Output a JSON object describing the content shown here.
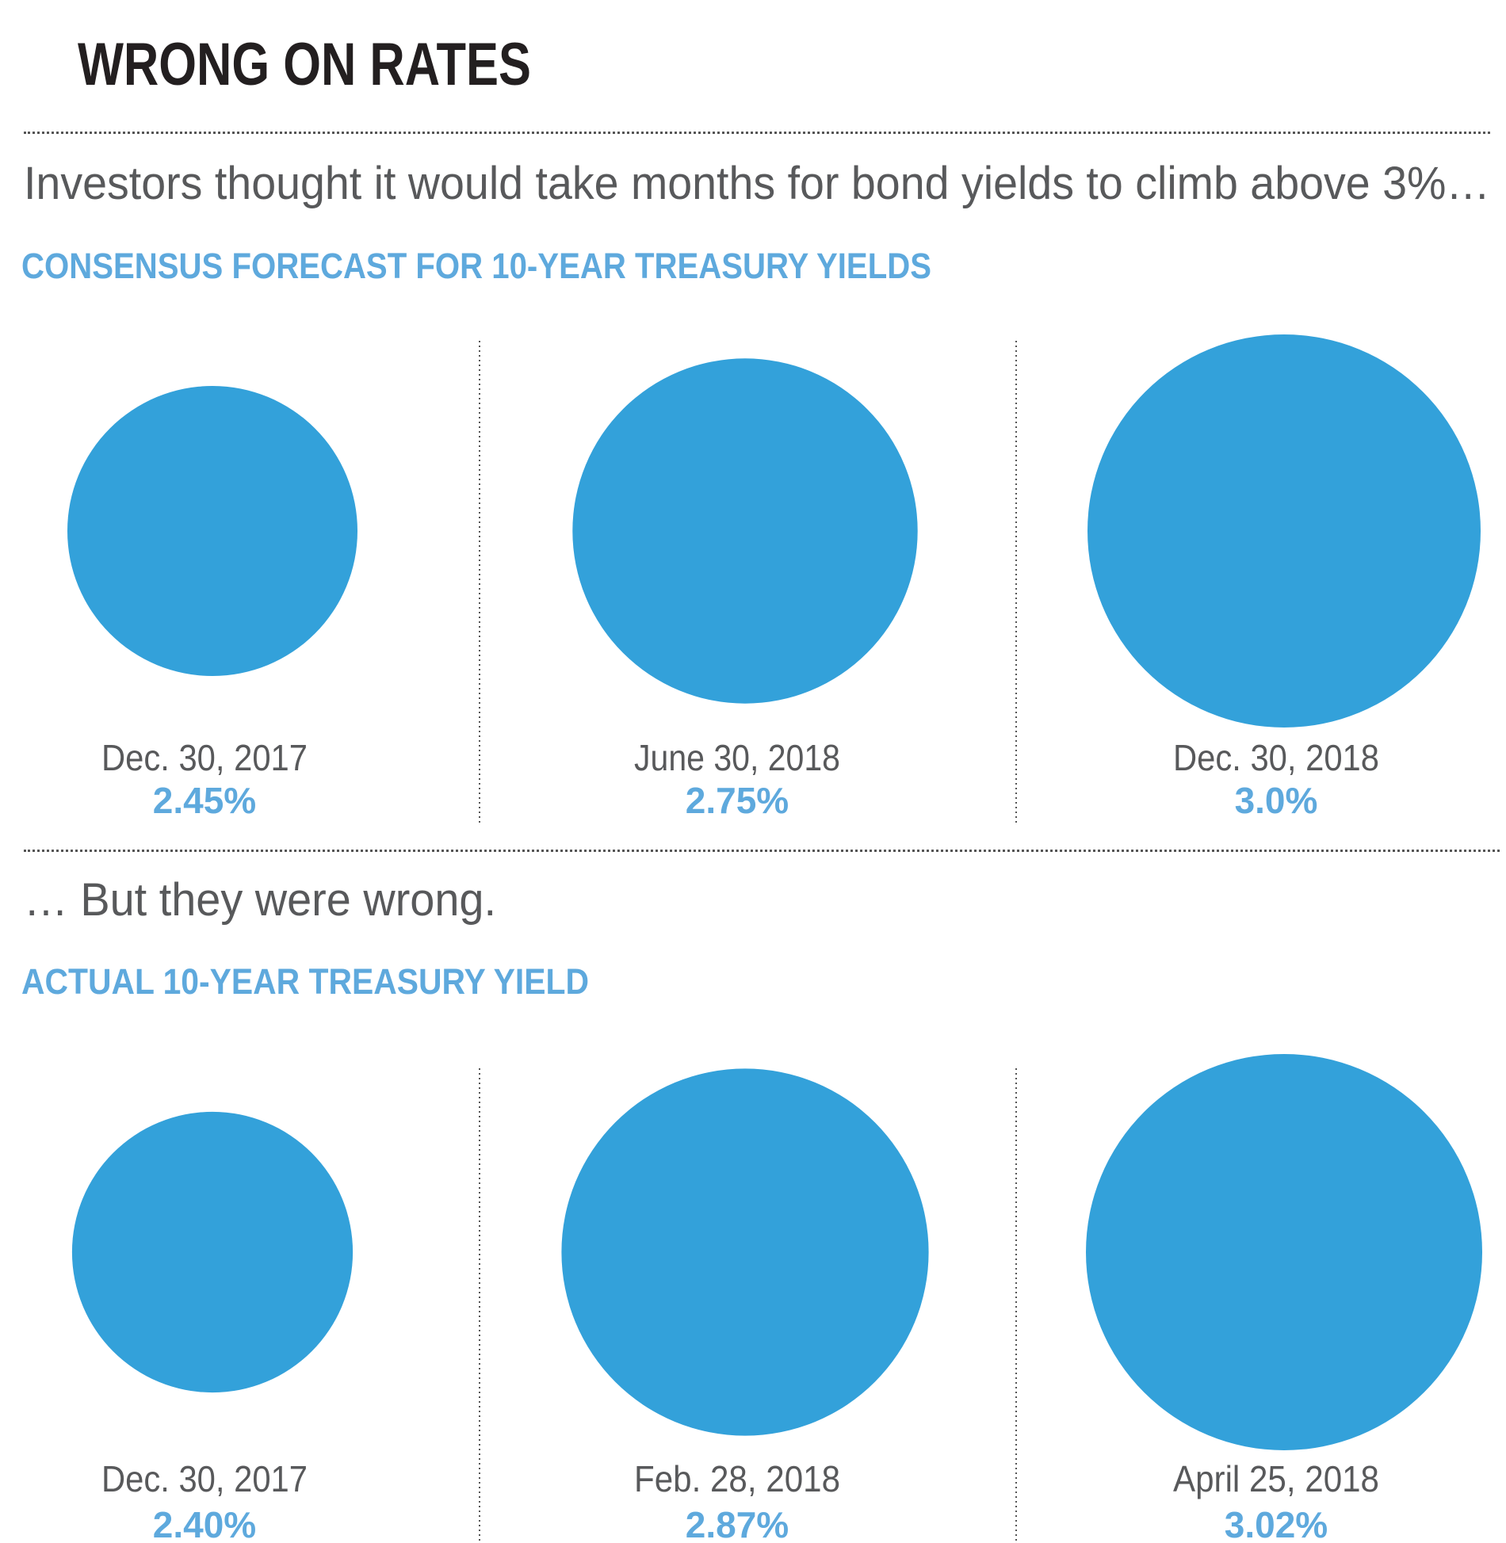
{
  "title": "WRONG ON RATES",
  "subtitle_top": "Investors thought it would take months for bond yields to climb above 3%…",
  "subtitle_bottom": "… But they were wrong.",
  "colors": {
    "bubble": "#33a1da",
    "value_text": "#5ea9dd",
    "date_text": "#58595b",
    "title_text": "#231f20"
  },
  "chart_data": [
    {
      "type": "bubble",
      "title": "CONSENSUS FORECAST FOR 10-YEAR TREASURY YIELDS",
      "categories": [
        "Dec. 30, 2017",
        "June 30, 2018",
        "Dec. 30, 2018"
      ],
      "values": [
        2.45,
        2.75,
        3.0
      ],
      "labels": [
        "2.45%",
        "2.75%",
        "3.0%"
      ],
      "unit": "%"
    },
    {
      "type": "bubble",
      "title": "ACTUAL 10-YEAR TREASURY YIELD",
      "categories": [
        "Dec. 30, 2017",
        "Feb. 28, 2018",
        "April 25, 2018"
      ],
      "values": [
        2.4,
        2.87,
        3.02
      ],
      "labels": [
        "2.40%",
        "2.87%",
        "3.02%"
      ],
      "unit": "%"
    }
  ]
}
